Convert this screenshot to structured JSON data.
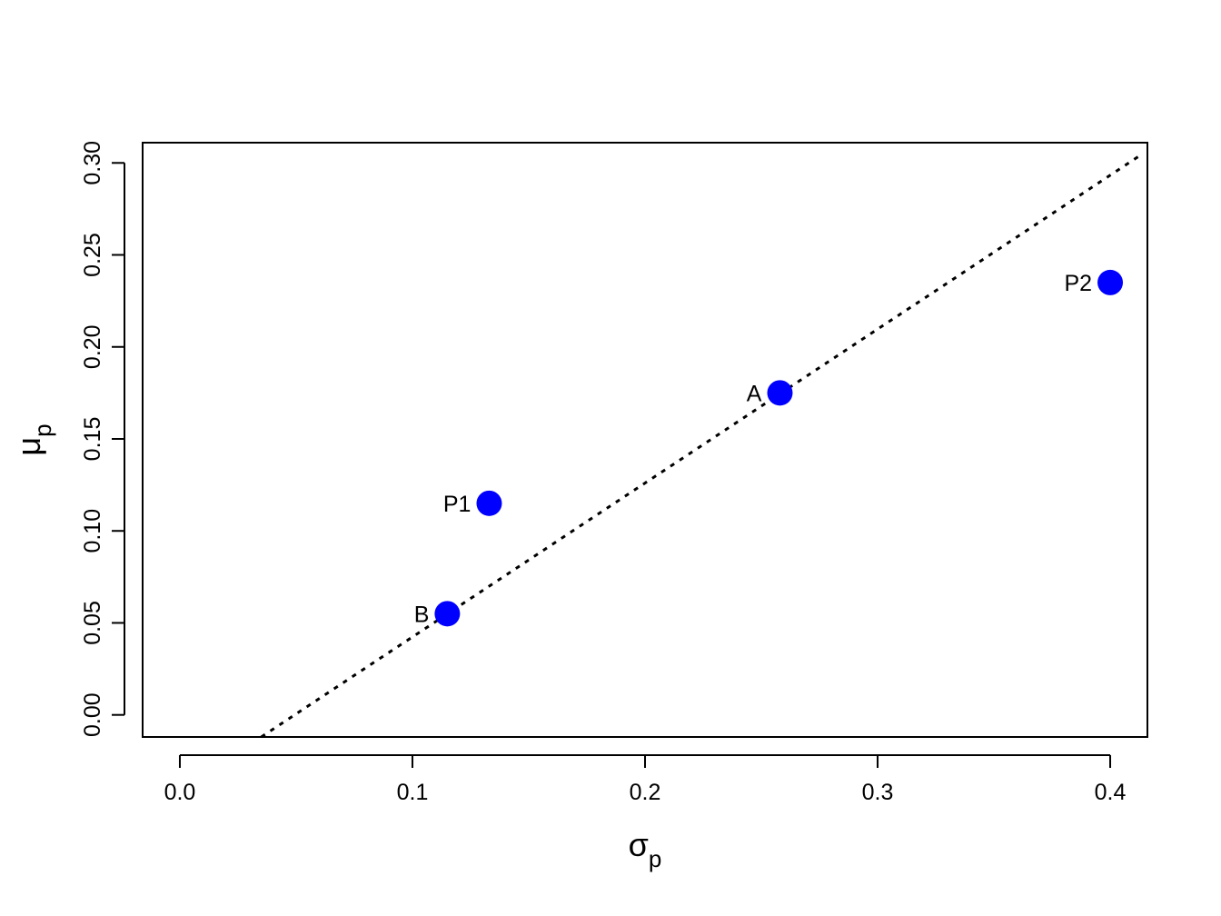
{
  "chart_data": {
    "type": "scatter",
    "xlabel": [
      "σ",
      "p"
    ],
    "ylabel": [
      "μ",
      "p"
    ],
    "points": {
      "labels": [
        "A",
        "B",
        "P1",
        "P2"
      ],
      "x": [
        0.258,
        0.115,
        0.133,
        0.4
      ],
      "y": [
        0.175,
        0.055,
        0.115,
        0.235
      ],
      "color": "#0000ff"
    },
    "line": {
      "x": [
        0.035,
        0.414
      ],
      "y": [
        -0.012,
        0.305
      ],
      "color": "#000000",
      "style": "dotted"
    },
    "xlim": [
      -0.016,
      0.416
    ],
    "ylim": [
      -0.012,
      0.311
    ],
    "xticks": [
      {
        "value": 0,
        "label": "0.0"
      },
      0.1,
      0.2,
      0.3,
      0.4
    ],
    "yticks": [
      {
        "value": 0,
        "label": "0.00"
      },
      0.05,
      {
        "value": 0.1,
        "label": "0.10"
      },
      0.15,
      {
        "value": 0.2,
        "label": "0.20"
      },
      0.25,
      {
        "value": 0.3,
        "label": "0.30"
      }
    ]
  }
}
